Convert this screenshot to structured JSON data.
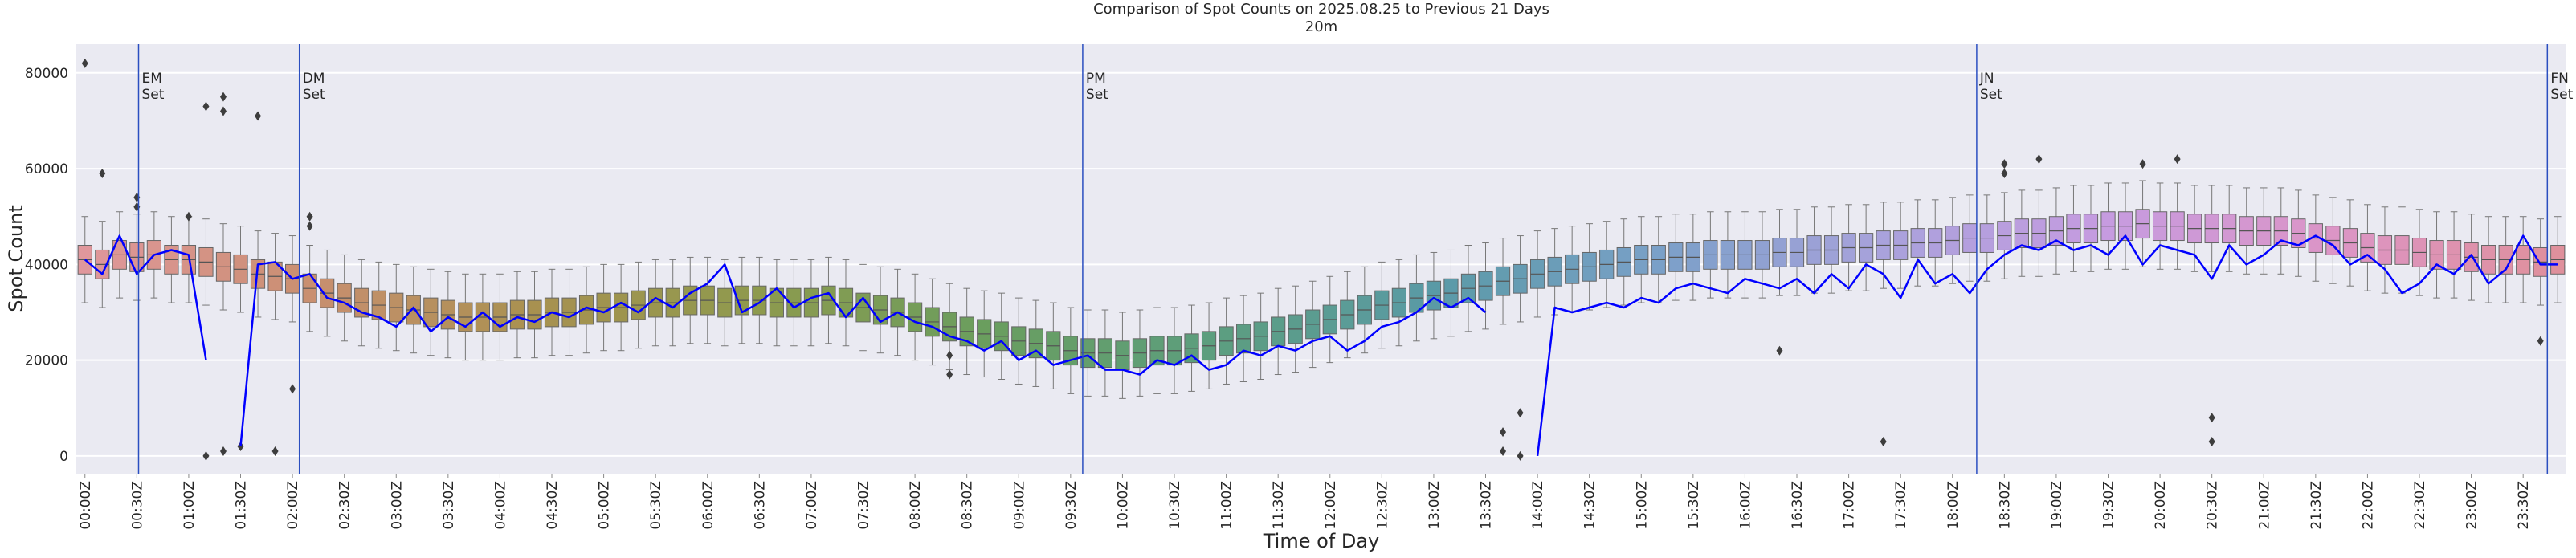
{
  "chart_data": {
    "type": "box",
    "title": "Comparison of Spot Counts on 2025.08.25 to Previous 21 Days",
    "subtitle": "20m",
    "x_label": "Time of Day",
    "y_label": "Spot Count",
    "background": "#eaeaf2",
    "grid": true,
    "ylim": [
      -3700,
      86000
    ],
    "yticks": [
      0,
      20000,
      40000,
      60000,
      80000
    ],
    "palette": [
      "#e0979c",
      "#c98f70",
      "#a89150",
      "#8e9a4e",
      "#6a9e5e",
      "#5c9e7e",
      "#5a9aa6",
      "#7aa0c8",
      "#a9a2dc",
      "#c69be0",
      "#dc95c6",
      "#df909c"
    ],
    "categories": [
      "00:00Z",
      null,
      null,
      "00:30Z",
      null,
      null,
      "01:00Z",
      null,
      null,
      "01:30Z",
      null,
      null,
      "02:00Z",
      null,
      null,
      "02:30Z",
      null,
      null,
      "03:00Z",
      null,
      null,
      "03:30Z",
      null,
      null,
      "04:00Z",
      null,
      null,
      "04:30Z",
      null,
      null,
      "05:00Z",
      null,
      null,
      "05:30Z",
      null,
      null,
      "06:00Z",
      null,
      null,
      "06:30Z",
      null,
      null,
      "07:00Z",
      null,
      null,
      "07:30Z",
      null,
      null,
      "08:00Z",
      null,
      null,
      "08:30Z",
      null,
      null,
      "09:00Z",
      null,
      null,
      "09:30Z",
      null,
      null,
      "10:00Z",
      null,
      null,
      "10:30Z",
      null,
      null,
      "11:00Z",
      null,
      null,
      "11:30Z",
      null,
      null,
      "12:00Z",
      null,
      null,
      "12:30Z",
      null,
      null,
      "13:00Z",
      null,
      null,
      "13:30Z",
      null,
      null,
      "14:00Z",
      null,
      null,
      "14:30Z",
      null,
      null,
      "15:00Z",
      null,
      null,
      "15:30Z",
      null,
      null,
      "16:00Z",
      null,
      null,
      "16:30Z",
      null,
      null,
      "17:00Z",
      null,
      null,
      "17:30Z",
      null,
      null,
      "18:00Z",
      null,
      null,
      "18:30Z",
      null,
      null,
      "19:00Z",
      null,
      null,
      "19:30Z",
      null,
      null,
      "20:00Z",
      null,
      null,
      "20:30Z",
      null,
      null,
      "21:00Z",
      null,
      null,
      "21:30Z",
      null,
      null,
      "22:00Z",
      null,
      null,
      "22:30Z",
      null,
      null,
      "23:00Z",
      null,
      null,
      "23:30Z",
      null,
      null
    ],
    "boxes": {
      "whislo": [
        32000,
        31000,
        33000,
        32500,
        33000,
        32000,
        32000,
        31500,
        30500,
        30000,
        29000,
        28500,
        28000,
        26000,
        25000,
        24000,
        23000,
        22500,
        22000,
        21500,
        21000,
        20500,
        20000,
        20000,
        20000,
        20500,
        20500,
        21000,
        21000,
        21500,
        22000,
        22000,
        22500,
        23000,
        23000,
        23500,
        23500,
        23000,
        23500,
        23500,
        23000,
        23000,
        23000,
        23500,
        23000,
        22000,
        21500,
        21000,
        20000,
        19000,
        18000,
        17000,
        16500,
        16000,
        15000,
        14500,
        14000,
        13000,
        12500,
        12500,
        12000,
        12500,
        13000,
        13000,
        13500,
        14000,
        15000,
        15500,
        16000,
        17000,
        17500,
        18500,
        19500,
        20500,
        21500,
        22500,
        23000,
        24000,
        24500,
        25000,
        26000,
        26500,
        27500,
        28000,
        29000,
        29500,
        30000,
        30500,
        31000,
        31500,
        32000,
        32000,
        32500,
        32500,
        33000,
        33000,
        33000,
        33000,
        33500,
        33500,
        34000,
        34000,
        34500,
        34500,
        35000,
        35000,
        35500,
        35500,
        36000,
        36500,
        36500,
        37000,
        37500,
        37500,
        38000,
        38500,
        38500,
        39000,
        39000,
        39500,
        39000,
        39000,
        38500,
        38500,
        38500,
        38000,
        38000,
        38000,
        37500,
        36500,
        36000,
        35500,
        34500,
        34000,
        34000,
        33500,
        33000,
        33000,
        32500,
        32000,
        32000,
        32000,
        31500,
        32000
      ],
      "q1": [
        38000,
        37000,
        39000,
        38500,
        39000,
        38000,
        38000,
        37500,
        36500,
        36000,
        35000,
        34500,
        34000,
        32000,
        31000,
        30000,
        29000,
        28500,
        28000,
        27500,
        27000,
        26500,
        26000,
        26000,
        26000,
        26500,
        26500,
        27000,
        27000,
        27500,
        28000,
        28000,
        28500,
        29000,
        29000,
        29500,
        29500,
        29000,
        29500,
        29500,
        29000,
        29000,
        29000,
        29500,
        29000,
        28000,
        27500,
        27000,
        26000,
        25000,
        24000,
        23000,
        22500,
        22000,
        21000,
        20500,
        20000,
        19000,
        18500,
        18500,
        18000,
        18500,
        19000,
        19000,
        19500,
        20000,
        21000,
        21500,
        22000,
        23000,
        23500,
        24500,
        25500,
        26500,
        27500,
        28500,
        29000,
        30000,
        30500,
        31000,
        32000,
        32500,
        33500,
        34000,
        35000,
        35500,
        36000,
        36500,
        37000,
        37500,
        38000,
        38000,
        38500,
        38500,
        39000,
        39000,
        39000,
        39000,
        39500,
        39500,
        40000,
        40000,
        40500,
        40500,
        41000,
        41000,
        41500,
        41500,
        42000,
        42500,
        42500,
        43000,
        43500,
        43500,
        44000,
        44500,
        44500,
        45000,
        45000,
        45500,
        45000,
        45000,
        44500,
        44500,
        44500,
        44000,
        44000,
        44000,
        43500,
        42500,
        42000,
        41500,
        40500,
        40000,
        40000,
        39500,
        39000,
        39000,
        38500,
        38000,
        38000,
        38000,
        37500,
        38000
      ],
      "med": [
        41000,
        40000,
        42000,
        41500,
        42000,
        41000,
        41000,
        40500,
        39500,
        39000,
        38000,
        37500,
        37000,
        35000,
        34000,
        33000,
        32000,
        31500,
        31000,
        30500,
        30000,
        29500,
        29000,
        29000,
        29000,
        29500,
        29500,
        30000,
        30000,
        30500,
        31000,
        31000,
        31500,
        32000,
        32000,
        32500,
        32500,
        32000,
        32500,
        32500,
        32000,
        32000,
        32000,
        32500,
        32000,
        31000,
        30500,
        30000,
        29000,
        28000,
        27000,
        26000,
        25500,
        25000,
        24000,
        23500,
        23000,
        22000,
        21500,
        21500,
        21000,
        21500,
        22000,
        22000,
        22500,
        23000,
        24000,
        24500,
        25000,
        26000,
        26500,
        27500,
        28500,
        29500,
        30500,
        31500,
        32000,
        33000,
        33500,
        34000,
        35000,
        35500,
        36500,
        37000,
        38000,
        38500,
        39000,
        39500,
        40000,
        40500,
        41000,
        41000,
        41500,
        41500,
        42000,
        42000,
        42000,
        42000,
        42500,
        42500,
        43000,
        43000,
        43500,
        43500,
        44000,
        44000,
        44500,
        44500,
        45000,
        45500,
        45500,
        46000,
        46500,
        46500,
        47000,
        47500,
        47500,
        48000,
        48000,
        48500,
        48000,
        48000,
        47500,
        47500,
        47500,
        47000,
        47000,
        47000,
        46500,
        45500,
        45000,
        44500,
        43500,
        43000,
        43000,
        42500,
        42000,
        42000,
        41500,
        41000,
        41000,
        41000,
        40500,
        41000
      ],
      "q3": [
        44000,
        43000,
        45000,
        44500,
        45000,
        44000,
        44000,
        43500,
        42500,
        42000,
        41000,
        40500,
        40000,
        38000,
        37000,
        36000,
        35000,
        34500,
        34000,
        33500,
        33000,
        32500,
        32000,
        32000,
        32000,
        32500,
        32500,
        33000,
        33000,
        33500,
        34000,
        34000,
        34500,
        35000,
        35000,
        35500,
        35500,
        35000,
        35500,
        35500,
        35000,
        35000,
        35000,
        35500,
        35000,
        34000,
        33500,
        33000,
        32000,
        31000,
        30000,
        29000,
        28500,
        28000,
        27000,
        26500,
        26000,
        25000,
        24500,
        24500,
        24000,
        24500,
        25000,
        25000,
        25500,
        26000,
        27000,
        27500,
        28000,
        29000,
        29500,
        30500,
        31500,
        32500,
        33500,
        34500,
        35000,
        36000,
        36500,
        37000,
        38000,
        38500,
        39500,
        40000,
        41000,
        41500,
        42000,
        42500,
        43000,
        43500,
        44000,
        44000,
        44500,
        44500,
        45000,
        45000,
        45000,
        45000,
        45500,
        45500,
        46000,
        46000,
        46500,
        46500,
        47000,
        47000,
        47500,
        47500,
        48000,
        48500,
        48500,
        49000,
        49500,
        49500,
        50000,
        50500,
        50500,
        51000,
        51000,
        51500,
        51000,
        51000,
        50500,
        50500,
        50500,
        50000,
        50000,
        50000,
        49500,
        48500,
        48000,
        47500,
        46500,
        46000,
        46000,
        45500,
        45000,
        45000,
        44500,
        44000,
        44000,
        44000,
        43500,
        44000
      ],
      "whishi": [
        50000,
        49000,
        51000,
        50500,
        51000,
        50000,
        50000,
        49500,
        48500,
        48000,
        47000,
        46500,
        46000,
        44000,
        43000,
        42000,
        41000,
        40500,
        40000,
        39500,
        39000,
        38500,
        38000,
        38000,
        38000,
        38500,
        38500,
        39000,
        39000,
        39500,
        40000,
        40000,
        40500,
        41000,
        41000,
        41500,
        41500,
        41000,
        41500,
        41500,
        41000,
        41000,
        41000,
        41500,
        41000,
        40000,
        39500,
        39000,
        38000,
        37000,
        36000,
        35000,
        34500,
        34000,
        33000,
        32500,
        32000,
        31000,
        30500,
        30500,
        30000,
        30500,
        31000,
        31000,
        31500,
        32000,
        33000,
        33500,
        34000,
        35000,
        35500,
        36500,
        37500,
        38500,
        39500,
        40500,
        41000,
        42000,
        42500,
        43000,
        44000,
        44500,
        45500,
        46000,
        47000,
        47500,
        48000,
        48500,
        49000,
        49500,
        50000,
        50000,
        50500,
        50500,
        51000,
        51000,
        51000,
        51000,
        51500,
        51500,
        52000,
        52000,
        52500,
        52500,
        53000,
        53000,
        53500,
        53500,
        54000,
        54500,
        54500,
        55000,
        55500,
        55500,
        56000,
        56500,
        56500,
        57000,
        57000,
        57500,
        57000,
        57000,
        56500,
        56500,
        56500,
        56000,
        56000,
        56000,
        55500,
        54500,
        54000,
        53500,
        52500,
        52000,
        52000,
        51500,
        51000,
        51000,
        50500,
        50000,
        50000,
        50000,
        49500,
        50000
      ],
      "outliers": [
        [
          82000
        ],
        [
          59000
        ],
        [],
        [
          52000,
          54000
        ],
        [],
        [],
        [
          50000
        ],
        [
          73000,
          0
        ],
        [
          75000,
          72000,
          1000
        ],
        [
          2000
        ],
        [
          71000
        ],
        [
          1000
        ],
        [
          14000
        ],
        [
          48000,
          50000
        ],
        [],
        [],
        [],
        [],
        [],
        [],
        [],
        [],
        [],
        [],
        [],
        [],
        [],
        [],
        [],
        [],
        [],
        [],
        [],
        [],
        [],
        [],
        [],
        [],
        [],
        [],
        [],
        [],
        [],
        [],
        [],
        [],
        [],
        [],
        [],
        [],
        [
          21000,
          17000
        ],
        [],
        [],
        [],
        [],
        [],
        [],
        [],
        [],
        [],
        [],
        [],
        [],
        [],
        [],
        [],
        [],
        [],
        [],
        [],
        [],
        [],
        [],
        [],
        [],
        [],
        [],
        [],
        [],
        [],
        [],
        [],
        [
          5000,
          1000
        ],
        [
          9000,
          0
        ],
        [],
        [],
        [],
        [],
        [],
        [],
        [],
        [],
        [],
        [],
        [],
        [],
        [],
        [],
        [
          22000
        ],
        [],
        [],
        [],
        [],
        [],
        [
          3000
        ],
        [],
        [],
        [],
        [],
        [],
        [],
        [
          59000,
          61000
        ],
        [],
        [
          62000
        ],
        [],
        [],
        [],
        [],
        [],
        [
          61000
        ],
        [],
        [
          62000
        ],
        [],
        [
          3000,
          8000
        ],
        [],
        [],
        [],
        [],
        [],
        [],
        [],
        [],
        [],
        [],
        [],
        [],
        [],
        [],
        [],
        [],
        [],
        [],
        [
          24000
        ],
        []
      ]
    },
    "line": {
      "color": "#0000ff",
      "values": [
        41000,
        38000,
        46000,
        38000,
        42000,
        43000,
        42000,
        20000,
        null,
        2000,
        40000,
        40500,
        37000,
        38000,
        33000,
        32000,
        30000,
        29000,
        27000,
        31000,
        26000,
        29000,
        27000,
        30000,
        27000,
        29000,
        28000,
        30000,
        29000,
        31000,
        30000,
        32000,
        30000,
        33000,
        31000,
        34000,
        36000,
        40000,
        30000,
        32000,
        35000,
        31000,
        33000,
        34000,
        29000,
        33000,
        28000,
        30000,
        28000,
        27000,
        25000,
        24000,
        22000,
        24000,
        20000,
        22000,
        19000,
        20000,
        21000,
        18000,
        18000,
        17000,
        20000,
        19000,
        21000,
        18000,
        19000,
        22000,
        21000,
        23000,
        22000,
        24000,
        25000,
        22000,
        24000,
        27000,
        28000,
        30000,
        33000,
        31000,
        33000,
        30000,
        null,
        null,
        0,
        31000,
        30000,
        31000,
        32000,
        31000,
        33000,
        32000,
        35000,
        36000,
        35000,
        34000,
        37000,
        36000,
        35000,
        37000,
        34000,
        38000,
        35000,
        40000,
        38000,
        33000,
        41000,
        36000,
        38000,
        34000,
        39000,
        42000,
        44000,
        43000,
        45000,
        43000,
        44000,
        42000,
        46000,
        40000,
        44000,
        43000,
        42000,
        37000,
        44000,
        40000,
        42000,
        45000,
        44000,
        46000,
        44000,
        40000,
        42000,
        39000,
        34000,
        36000,
        40000,
        38000,
        42000,
        36000,
        39000,
        46000,
        40000,
        40000
      ]
    },
    "annotations": [
      {
        "x": 3.1,
        "label": "EM\nSet",
        "color": "#2a4ec0"
      },
      {
        "x": 12.4,
        "label": "DM\nSet",
        "color": "#2a4ec0"
      },
      {
        "x": 57.7,
        "label": "PM\nSet",
        "color": "#2a4ec0"
      },
      {
        "x": 109.4,
        "label": "JN\nSet",
        "color": "#2a4ec0"
      },
      {
        "x": 142.4,
        "label": "FN\nSet",
        "color": "#2a4ec0"
      }
    ]
  }
}
